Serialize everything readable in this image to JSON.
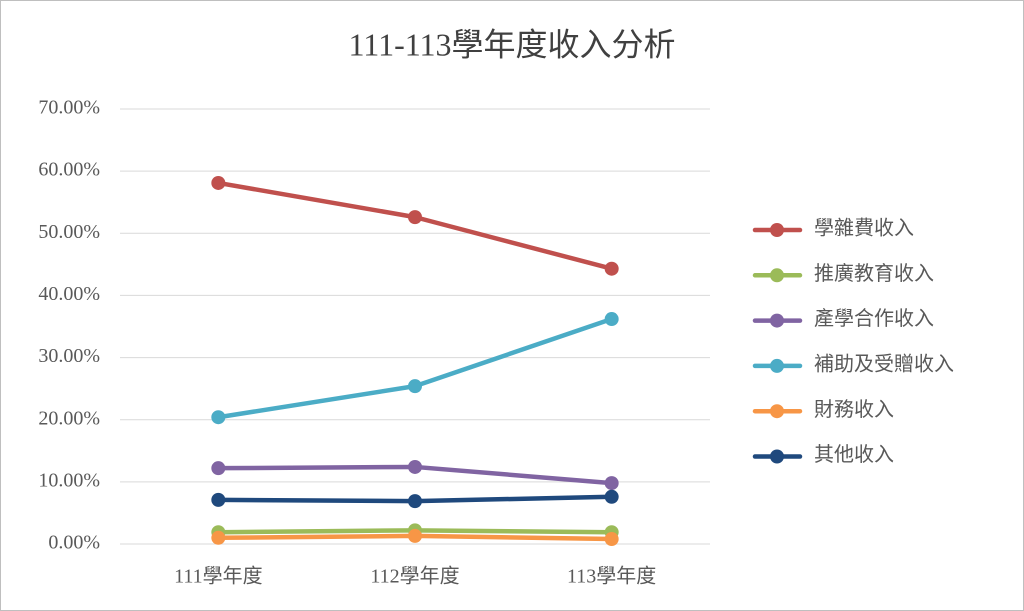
{
  "chart_data": {
    "type": "line",
    "title": "111-113學年度收入分析",
    "categories": [
      "111學年度",
      "112學年度",
      "113學年度"
    ],
    "series": [
      {
        "name": "學雜費收入",
        "color": "#c0504d",
        "values": [
          58.1,
          52.6,
          44.3
        ]
      },
      {
        "name": "推廣教育收入",
        "color": "#9bbb59",
        "values": [
          1.9,
          2.2,
          1.9
        ]
      },
      {
        "name": "產學合作收入",
        "color": "#8064a2",
        "values": [
          12.2,
          12.4,
          9.8
        ]
      },
      {
        "name": "補助及受贈收入",
        "color": "#4bacc6",
        "values": [
          20.4,
          25.4,
          36.2
        ]
      },
      {
        "name": "財務收入",
        "color": "#f79646",
        "values": [
          1.0,
          1.3,
          0.8
        ]
      },
      {
        "name": "其他收入",
        "color": "#1f497d",
        "values": [
          7.1,
          6.9,
          7.6
        ]
      }
    ],
    "ylim": [
      0,
      70
    ],
    "yticks": [
      {
        "value": 0,
        "label": "0.00%"
      },
      {
        "value": 10,
        "label": "10.00%"
      },
      {
        "value": 20,
        "label": "20.00%"
      },
      {
        "value": 30,
        "label": "30.00%"
      },
      {
        "value": 40,
        "label": "40.00%"
      },
      {
        "value": 50,
        "label": "50.00%"
      },
      {
        "value": 60,
        "label": "60.00%"
      },
      {
        "value": 70,
        "label": "70.00%"
      }
    ],
    "grid": true,
    "legend": "right"
  }
}
